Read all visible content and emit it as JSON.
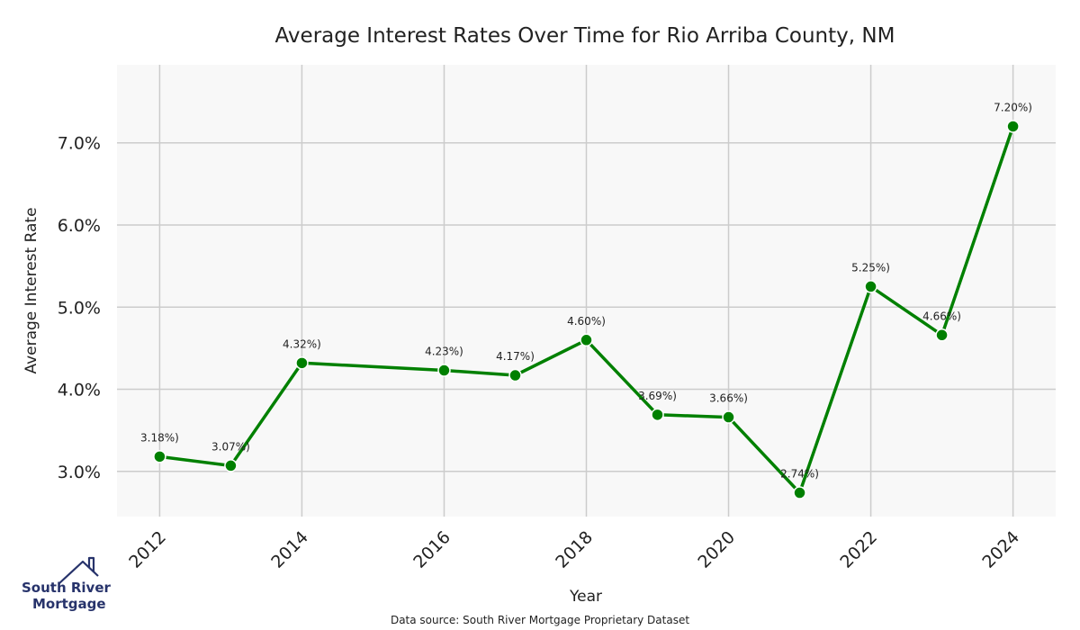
{
  "chart_data": {
    "type": "line",
    "title": "Average Interest Rates Over Time for Rio Arriba County, NM",
    "xlabel": "Year",
    "ylabel": "Average Interest Rate",
    "x": [
      2012,
      2013,
      2014,
      2016,
      2017,
      2018,
      2019,
      2020,
      2021,
      2022,
      2023,
      2024
    ],
    "series": [
      {
        "values": [
          3.18,
          3.07,
          4.32,
          4.23,
          4.17,
          4.6,
          3.69,
          3.66,
          2.74,
          5.25,
          4.66,
          7.2
        ]
      }
    ],
    "data_labels": [
      "3.18%)",
      "3.07%)",
      "4.32%)",
      "4.23%)",
      "4.17%)",
      "4.60%)",
      "3.69%)",
      "3.66%)",
      "2.74%)",
      "5.25%)",
      "4.66%)",
      "7.20%)"
    ],
    "xticks": [
      2012,
      2014,
      2016,
      2018,
      2020,
      2022,
      2024
    ],
    "xtick_labels": [
      "2012",
      "2014",
      "2016",
      "2018",
      "2020",
      "2022",
      "2024"
    ],
    "yticks": [
      3.0,
      4.0,
      5.0,
      6.0,
      7.0
    ],
    "ytick_labels": [
      "3.0%",
      "4.0%",
      "5.0%",
      "6.0%",
      "7.0%"
    ],
    "xlim": [
      2011.4,
      2024.6
    ],
    "ylim": [
      2.45,
      7.95
    ],
    "grid": true,
    "line_color": "#008000",
    "background_color": "#f8f8f8",
    "grid_color": "#cccccc"
  },
  "footer": {
    "source": "Data source: South River Mortgage Proprietary Dataset"
  },
  "logo": {
    "line1": "South River",
    "line2": "Mortgage",
    "color": "#27336b",
    "icon": "house-icon"
  }
}
